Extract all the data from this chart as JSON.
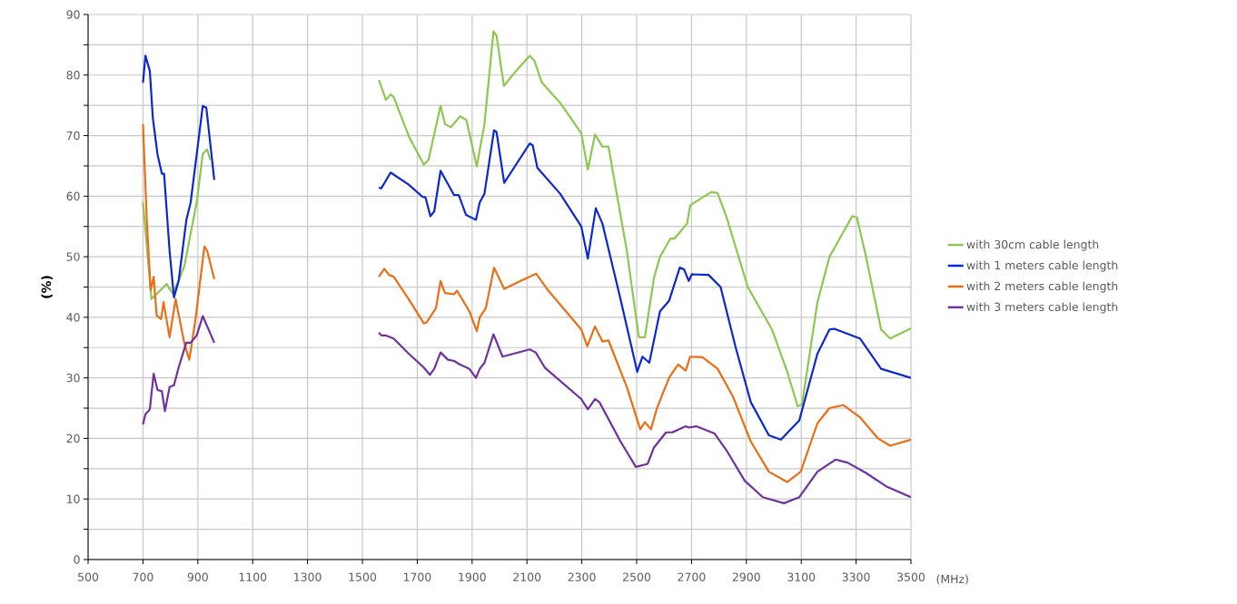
{
  "chart_data": {
    "type": "line",
    "xlabel": "(MHz)",
    "ylabel": "(%)",
    "xlim": [
      500,
      3500
    ],
    "xticks": [
      500,
      700,
      900,
      1100,
      1300,
      1500,
      1700,
      1900,
      2100,
      2300,
      2500,
      2700,
      2900,
      3100,
      3300,
      3500
    ],
    "ylim": [
      0,
      90
    ],
    "yticks": [
      0,
      {
        "value": 5,
        "label": null
      },
      10,
      {
        "value": 15,
        "label": null
      },
      20,
      {
        "value": 25,
        "label": null
      },
      30,
      {
        "value": 35,
        "label": null
      },
      40,
      {
        "value": 45,
        "label": null
      },
      50,
      {
        "value": 55,
        "label": null
      },
      60,
      {
        "value": 65,
        "label": null
      },
      70,
      {
        "value": 75,
        "label": null
      },
      80,
      {
        "value": 85,
        "label": null
      },
      90
    ],
    "grid": true,
    "legend": "right",
    "line_style": "solid",
    "series": [
      {
        "name": "with 30cm cable length",
        "color": "#8cc850",
        "x": [
          700,
          731,
          786,
          808,
          830,
          851,
          896,
          918,
          934,
          945,
          1260,
          1560,
          1586,
          1603,
          1614,
          1669,
          1724,
          1741,
          1785,
          1801,
          1823,
          1856,
          1879,
          1917,
          1945,
          1978,
          1989,
          2016,
          2055,
          2110,
          2127,
          2154,
          2221,
          2298,
          2322,
          2348,
          2375,
          2397,
          2464,
          2508,
          2530,
          2563,
          2585,
          2623,
          2638,
          2684,
          2695,
          2773,
          2795,
          2828,
          2905,
          2993,
          3049,
          3087,
          3103,
          3159,
          3203,
          3286,
          3303,
          3336,
          3391,
          3424,
          3500
        ],
        "values": [
          59,
          43,
          45.5,
          44,
          46,
          48.5,
          59,
          67,
          67.7,
          66,
          null,
          79.2,
          75.9,
          76.8,
          76.4,
          69.9,
          65.2,
          66,
          74.9,
          71.9,
          71.4,
          73.2,
          72.6,
          64.9,
          71.9,
          87.2,
          86.5,
          78.2,
          80.4,
          83.2,
          82.4,
          78.8,
          75.4,
          70.4,
          64.4,
          70.2,
          68.2,
          68.2,
          51,
          36.7,
          36.7,
          46.5,
          50,
          53,
          53,
          55.5,
          58.5,
          60.7,
          60.5,
          56.5,
          45,
          38,
          31,
          25.3,
          25.6,
          42.5,
          50,
          56.7,
          56.5,
          50,
          38,
          36.5,
          38.2
        ]
      },
      {
        "name": "with 1 meters cable length",
        "color": "#0a28d2",
        "x": [
          700,
          709,
          725,
          736,
          753,
          769,
          777,
          797,
          813,
          830,
          858,
          874,
          918,
          931,
          960,
          1260,
          1560,
          1569,
          1603,
          1669,
          1719,
          1730,
          1748,
          1762,
          1785,
          1834,
          1851,
          1878,
          1914,
          1928,
          1945,
          1980,
          1989,
          2017,
          2110,
          2121,
          2138,
          2221,
          2298,
          2322,
          2351,
          2375,
          2441,
          2502,
          2521,
          2546,
          2585,
          2618,
          2657,
          2673,
          2690,
          2701,
          2762,
          2806,
          2861,
          2916,
          2982,
          3026,
          3093,
          3159,
          3203,
          3220,
          3314,
          3391,
          3500
        ],
        "values": [
          78.7,
          83.2,
          80.7,
          72.9,
          66.9,
          63.7,
          63.7,
          51,
          43.3,
          46,
          56,
          59,
          74.9,
          74.6,
          62.7,
          null,
          61.4,
          61.3,
          63.9,
          61.9,
          59.9,
          59.8,
          56.7,
          57.5,
          64.2,
          60.2,
          60.2,
          56.9,
          56.1,
          59,
          60.4,
          70.9,
          70.6,
          62.2,
          68.7,
          68.4,
          64.7,
          60.4,
          55,
          49.7,
          58,
          55.5,
          43,
          31,
          33.5,
          32.5,
          41,
          42.7,
          48.2,
          47.9,
          46,
          47.1,
          47,
          45,
          35,
          26,
          20.5,
          19.8,
          23,
          34,
          38,
          38.1,
          36.5,
          31.5,
          30
        ]
      },
      {
        "name": "with 2 meters cable length",
        "color": "#eb6e14",
        "x": [
          700,
          714,
          728,
          739,
          750,
          766,
          775,
          797,
          819,
          852,
          869,
          891,
          924,
          934,
          960,
          1260,
          1560,
          1580,
          1597,
          1614,
          1669,
          1724,
          1735,
          1768,
          1785,
          1801,
          1834,
          1845,
          1890,
          1917,
          1928,
          1950,
          1980,
          2017,
          2077,
          2134,
          2176,
          2298,
          2320,
          2348,
          2375,
          2397,
          2464,
          2513,
          2530,
          2552,
          2574,
          2618,
          2651,
          2679,
          2695,
          2740,
          2795,
          2850,
          2916,
          2982,
          3049,
          3098,
          3159,
          3203,
          3253,
          3314,
          3380,
          3424,
          3500
        ],
        "values": [
          71.9,
          56,
          44.5,
          46.7,
          40.3,
          39.7,
          42.5,
          36.7,
          43,
          35.5,
          33,
          39.5,
          51.7,
          51,
          46.3,
          null,
          46.7,
          48,
          47,
          46.7,
          43,
          39,
          39.2,
          41.5,
          46,
          44,
          43.8,
          44.4,
          41,
          37.7,
          40,
          41.5,
          48.2,
          44.7,
          46,
          47.2,
          44.5,
          38,
          35.2,
          38.5,
          36,
          36.2,
          28.5,
          21.5,
          22.7,
          21.5,
          25,
          30,
          32.2,
          31.2,
          33.5,
          33.4,
          31.5,
          27,
          19.5,
          14.5,
          12.8,
          14.5,
          22.5,
          25,
          25.5,
          23.5,
          20,
          18.8,
          19.8
        ]
      },
      {
        "name": "with 3 meters cable length",
        "color": "#7030a0",
        "x": [
          700,
          709,
          725,
          739,
          753,
          769,
          780,
          797,
          813,
          830,
          858,
          874,
          896,
          918,
          960,
          1260,
          1560,
          1569,
          1586,
          1614,
          1669,
          1724,
          1746,
          1762,
          1785,
          1812,
          1834,
          1856,
          1890,
          1914,
          1928,
          1945,
          1978,
          2011,
          2110,
          2132,
          2165,
          2298,
          2322,
          2348,
          2364,
          2441,
          2497,
          2540,
          2563,
          2607,
          2630,
          2679,
          2690,
          2717,
          2784,
          2828,
          2894,
          2960,
          3037,
          3093,
          3159,
          3225,
          3269,
          3336,
          3413,
          3500
        ],
        "values": [
          22.3,
          24,
          24.8,
          30.7,
          28,
          27.8,
          24.5,
          28.5,
          28.8,
          31.7,
          35.8,
          35.8,
          37,
          40.2,
          35.8,
          null,
          37.5,
          37,
          37,
          36.5,
          34,
          31.7,
          30.5,
          31.5,
          34.2,
          33,
          32.8,
          32.2,
          31.5,
          30,
          31.5,
          32.5,
          37.2,
          33.5,
          34.7,
          34.2,
          31.7,
          26.5,
          24.8,
          26.5,
          26,
          19.5,
          15.3,
          15.8,
          18.5,
          21,
          21,
          22,
          21.8,
          22,
          20.8,
          18,
          13,
          10.3,
          9.3,
          10.3,
          14.5,
          16.5,
          16,
          14.3,
          12,
          10.3
        ]
      }
    ]
  }
}
